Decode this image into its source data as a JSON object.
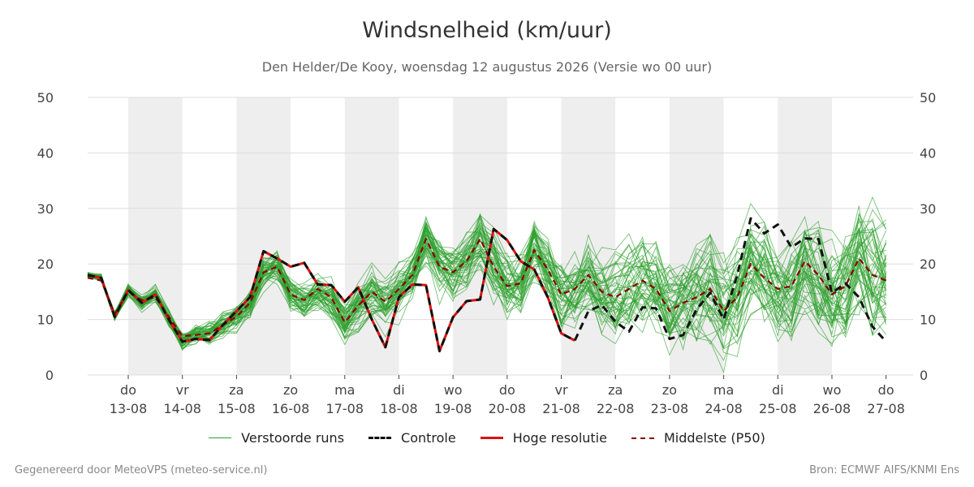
{
  "chart_data": {
    "type": "line",
    "title": "Windsnelheid (km/uur)",
    "subtitle": "Den Helder/De Kooy, woensdag 12 augustus 2026 (Versie wo 00 uur)",
    "ylim": [
      0,
      50
    ],
    "yticks": [
      0,
      10,
      20,
      30,
      40,
      50
    ],
    "xlim": [
      -0.75,
      14.5
    ],
    "x_ticks": [
      {
        "x": 0,
        "day": "do",
        "date": "13-08"
      },
      {
        "x": 1,
        "day": "vr",
        "date": "14-08"
      },
      {
        "x": 2,
        "day": "za",
        "date": "15-08"
      },
      {
        "x": 3,
        "day": "zo",
        "date": "16-08"
      },
      {
        "x": 4,
        "day": "ma",
        "date": "17-08"
      },
      {
        "x": 5,
        "day": "di",
        "date": "18-08"
      },
      {
        "x": 6,
        "day": "wo",
        "date": "19-08"
      },
      {
        "x": 7,
        "day": "do",
        "date": "20-08"
      },
      {
        "x": 8,
        "day": "vr",
        "date": "21-08"
      },
      {
        "x": 9,
        "day": "za",
        "date": "22-08"
      },
      {
        "x": 10,
        "day": "zo",
        "date": "23-08"
      },
      {
        "x": 11,
        "day": "ma",
        "date": "24-08"
      },
      {
        "x": 12,
        "day": "di",
        "date": "25-08"
      },
      {
        "x": 13,
        "day": "wo",
        "date": "26-08"
      },
      {
        "x": 14,
        "day": "do",
        "date": "27-08"
      }
    ],
    "shaded_days": [
      [
        0,
        1
      ],
      [
        2,
        3
      ],
      [
        4,
        5
      ],
      [
        6,
        7
      ],
      [
        8,
        9
      ],
      [
        10,
        11
      ],
      [
        12,
        13
      ]
    ],
    "grid": true,
    "legend_position": "bottom",
    "colors": {
      "ensemble": "#2ca02c",
      "controle": "#111111",
      "hoge_resolutie": "#dd1111",
      "p50": "#8b0000",
      "shade": "#eeeeee",
      "grid": "#dddddd"
    },
    "series": [
      {
        "name": "Controle",
        "x": [
          -0.75,
          -0.5,
          -0.25,
          0,
          0.25,
          0.5,
          0.75,
          1,
          1.25,
          1.5,
          1.75,
          2,
          2.25,
          2.5,
          2.75,
          3,
          3.25,
          3.5,
          3.75,
          4,
          4.25,
          4.5,
          4.75,
          5,
          5.25,
          5.5,
          5.75,
          6,
          6.25,
          6.5,
          6.75,
          7,
          7.25,
          7.5,
          7.75,
          8,
          8.25,
          8.5,
          8.75,
          9,
          9.25,
          9.5,
          9.75,
          10,
          10.25,
          10.5,
          10.75,
          11,
          11.25,
          11.5,
          11.75,
          12,
          12.25,
          12.5,
          12.75,
          13,
          13.25,
          13.5,
          13.75,
          14
        ],
        "values": [
          18,
          17.5,
          10.5,
          15.3,
          13,
          14.5,
          10,
          6,
          6.5,
          6.3,
          9,
          11.5,
          14,
          22.3,
          21,
          19.5,
          20.2,
          16.3,
          16.2,
          13.2,
          15.8,
          10,
          5,
          14,
          16.3,
          16.2,
          4.3,
          10.4,
          13.3,
          13.6,
          26.3,
          24.3,
          20.5,
          19,
          14,
          7.5,
          6.2,
          11.5,
          12.6,
          9.6,
          7.8,
          12.2,
          12,
          6.5,
          7.2,
          11.8,
          14.8,
          10,
          18,
          28.2,
          25.5,
          27.1,
          23,
          24.6,
          24.5,
          14.8,
          16.5,
          14,
          8.7,
          6
        ]
      },
      {
        "name": "Hoge resolutie",
        "x": [
          -0.75,
          -0.5,
          -0.25,
          0,
          0.25,
          0.5,
          0.75,
          1,
          1.25,
          1.5,
          1.75,
          2,
          2.25,
          2.5,
          2.75,
          3,
          3.25,
          3.5,
          3.75,
          4,
          4.25,
          4.5,
          4.75,
          5,
          5.25,
          5.5,
          5.75,
          6,
          6.25,
          6.5,
          6.75,
          7,
          7.25,
          7.5,
          7.75,
          8,
          8.25
        ],
        "values": [
          18,
          17.5,
          10.5,
          15.3,
          13,
          14.5,
          10,
          6,
          6.5,
          6.3,
          9,
          11.5,
          14,
          22.3,
          21,
          19.5,
          20.2,
          16.3,
          16.2,
          13.2,
          15.8,
          10,
          5,
          14,
          16.3,
          16.2,
          4.3,
          10.4,
          13.3,
          13.6,
          26.3,
          24.3,
          20.5,
          19,
          14,
          7.5,
          6.2
        ]
      },
      {
        "name": "Middelste (P50)",
        "x": [
          -0.75,
          -0.5,
          -0.25,
          0,
          0.25,
          0.5,
          0.75,
          1,
          1.25,
          1.5,
          1.75,
          2,
          2.25,
          2.5,
          2.75,
          3,
          3.25,
          3.5,
          3.75,
          4,
          4.25,
          4.5,
          4.75,
          5,
          5.25,
          5.5,
          5.75,
          6,
          6.25,
          6.5,
          6.75,
          7,
          7.25,
          7.5,
          7.75,
          8,
          8.25,
          8.5,
          8.75,
          9,
          9.25,
          9.5,
          9.75,
          10,
          10.25,
          10.5,
          10.75,
          11,
          11.25,
          11.5,
          11.75,
          12,
          12.25,
          12.5,
          12.75,
          13,
          13.25,
          13.5,
          13.75,
          14
        ],
        "values": [
          17.5,
          17,
          11,
          15,
          13.5,
          14,
          10.5,
          7,
          7.2,
          7.5,
          9,
          10.5,
          13,
          18.5,
          19.5,
          14.5,
          13.5,
          15.5,
          14,
          9.5,
          12.5,
          15,
          13.2,
          15.5,
          18,
          24.5,
          19.5,
          18.5,
          20.5,
          24.5,
          19.5,
          16,
          16.5,
          22.5,
          19,
          14.5,
          15.5,
          18,
          15,
          14,
          15.5,
          17,
          15.5,
          11.5,
          13,
          14,
          15.5,
          11.5,
          14,
          20,
          17.5,
          15.5,
          16,
          20.5,
          18,
          14.5,
          16,
          21,
          18,
          17
        ]
      }
    ],
    "ensemble_series_name": "Verstoorde runs",
    "legend": [
      "Verstoorde runs",
      "Controle",
      "Hoge resolutie",
      "Middelste (P50)"
    ]
  },
  "footer": {
    "left": "Gegenereerd door MeteoVPS (meteo-service.nl)",
    "right": "Bron: ECMWF AIFS/KNMI Ens"
  }
}
